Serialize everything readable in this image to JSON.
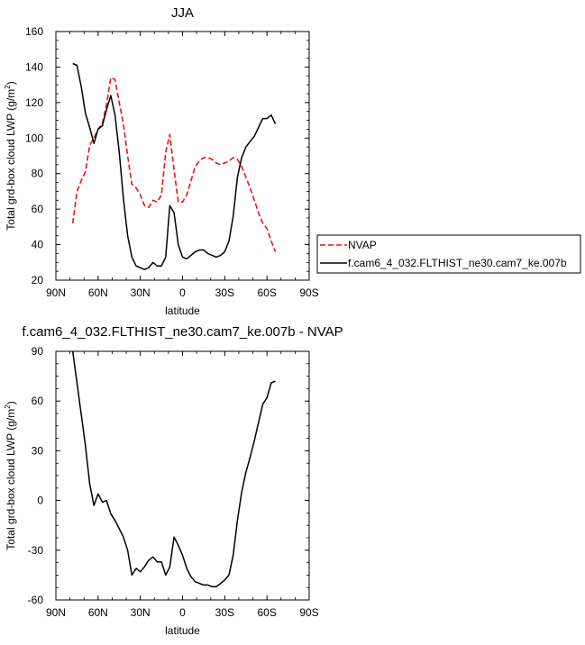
{
  "chart_data": [
    {
      "type": "line",
      "title": "JJA",
      "xlabel": "latitude",
      "ylabel": "Total grd-box cloud LWP (g/m²)",
      "ylabel_unit_base": "Total grd-box cloud LWP (g/m",
      "ylabel_unit_sup": "2",
      "ylabel_unit_close": ")",
      "xlim": [
        90,
        -90
      ],
      "ylim": [
        20,
        160
      ],
      "xticks": [
        90,
        60,
        30,
        0,
        -30,
        -60,
        -90
      ],
      "xtick_labels": [
        "90N",
        "60N",
        "30N",
        "0",
        "30S",
        "60S",
        "90S"
      ],
      "yticks": [
        20,
        40,
        60,
        80,
        100,
        120,
        140,
        160
      ],
      "ytick_labels": [
        "20",
        "40",
        "60",
        "80",
        "100",
        "120",
        "140",
        "160"
      ],
      "legend_position": "right",
      "series": [
        {
          "name": "NVAP",
          "color": "#e8141a",
          "dash": "dashed",
          "x": [
            78,
            75,
            72,
            69,
            66,
            63,
            60,
            57,
            54,
            51,
            48,
            45,
            42,
            39,
            36,
            33,
            30,
            27,
            24,
            21,
            18,
            15,
            12,
            9,
            6,
            3,
            0,
            -3,
            -6,
            -9,
            -12,
            -15,
            -18,
            -21,
            -24,
            -27,
            -30,
            -33,
            -36,
            -39,
            -42,
            -45,
            -48,
            -51,
            -54,
            -57,
            -60,
            -63,
            -66
          ],
          "y": [
            52,
            70,
            76,
            81,
            96,
            100,
            105,
            108,
            119,
            134,
            133,
            120,
            108,
            90,
            74,
            72,
            68,
            62,
            61,
            65,
            64,
            68,
            92,
            102,
            82,
            64,
            64,
            68,
            76,
            84,
            87,
            89,
            89,
            88,
            86,
            85,
            86,
            87,
            89,
            88,
            84,
            78,
            72,
            65,
            58,
            52,
            49,
            42,
            36
          ]
        },
        {
          "name": "f.cam6_4_032.FLTHIST_ne30.cam7_ke.007b",
          "color": "#000000",
          "dash": "solid",
          "x": [
            78,
            75,
            72,
            69,
            66,
            63,
            60,
            57,
            54,
            51,
            48,
            45,
            42,
            39,
            36,
            33,
            30,
            27,
            24,
            21,
            18,
            15,
            12,
            9,
            6,
            3,
            0,
            -3,
            -6,
            -9,
            -12,
            -15,
            -18,
            -21,
            -24,
            -27,
            -30,
            -33,
            -36,
            -39,
            -42,
            -45,
            -48,
            -51,
            -54,
            -57,
            -60,
            -63,
            -66
          ],
          "y": [
            142,
            141,
            129,
            114,
            106,
            97,
            105,
            107,
            116,
            124,
            113,
            92,
            66,
            45,
            33,
            28,
            27,
            26,
            27,
            30,
            28,
            28,
            33,
            62,
            58,
            40,
            33,
            32,
            34,
            36,
            37,
            37,
            35,
            34,
            33,
            34,
            36,
            42,
            56,
            78,
            89,
            95,
            98,
            101,
            106,
            111,
            111,
            113,
            108
          ]
        }
      ]
    },
    {
      "type": "line",
      "title": "f.cam6_4_032.FLTHIST_ne30.cam7_ke.007b - NVAP",
      "xlabel": "latitude",
      "ylabel": "Total grd-box cloud LWP (g/m²)",
      "ylabel_unit_base": "Total grd-box cloud LWP (g/m",
      "ylabel_unit_sup": "2",
      "ylabel_unit_close": ")",
      "xlim": [
        90,
        -90
      ],
      "ylim": [
        -60,
        90
      ],
      "xticks": [
        90,
        60,
        30,
        0,
        -30,
        -60,
        -90
      ],
      "xtick_labels": [
        "90N",
        "60N",
        "30N",
        "0",
        "30S",
        "60S",
        "90S"
      ],
      "yticks": [
        -60,
        -30,
        0,
        30,
        60,
        90
      ],
      "ytick_labels": [
        "-60",
        "-30",
        "0",
        "30",
        "60",
        "90"
      ],
      "series": [
        {
          "color": "#000000",
          "dash": "solid",
          "x": [
            78,
            75,
            72,
            69,
            66,
            63,
            60,
            57,
            54,
            51,
            48,
            45,
            42,
            39,
            36,
            33,
            30,
            27,
            24,
            21,
            18,
            15,
            12,
            9,
            6,
            3,
            0,
            -3,
            -6,
            -9,
            -12,
            -15,
            -18,
            -21,
            -24,
            -27,
            -30,
            -33,
            -36,
            -39,
            -42,
            -45,
            -48,
            -51,
            -54,
            -57,
            -60,
            -63,
            -66
          ],
          "y": [
            90,
            71,
            52,
            33,
            10,
            -3,
            4,
            -1,
            0,
            -8,
            -12,
            -17,
            -22,
            -30,
            -45,
            -41,
            -43,
            -40,
            -36,
            -34,
            -37,
            -37,
            -45,
            -40,
            -22,
            -27,
            -33,
            -41,
            -46,
            -49,
            -50,
            -51,
            -51,
            -52,
            -52,
            -50,
            -48,
            -45,
            -33,
            -12,
            5,
            17,
            26,
            36,
            47,
            58,
            62,
            71,
            72
          ]
        }
      ]
    }
  ]
}
